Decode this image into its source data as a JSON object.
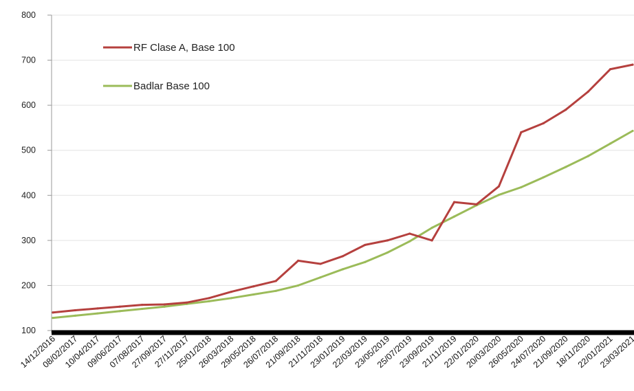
{
  "chart_data": {
    "type": "line",
    "title": "",
    "xlabel": "",
    "ylabel": "",
    "ylim": [
      100,
      800
    ],
    "yticks": [
      100,
      200,
      300,
      400,
      500,
      600,
      700,
      800
    ],
    "grid": true,
    "legend_position": "top-left",
    "x_tick_labels": [
      "14/12/2016",
      "08/02/2017",
      "10/04/2017",
      "09/06/2017",
      "07/08/2017",
      "27/09/2017",
      "27/11/2017",
      "25/01/2018",
      "26/03/2018",
      "29/05/2018",
      "26/07/2018",
      "21/09/2018",
      "21/11/2018",
      "23/01/2019",
      "22/03/2019",
      "23/05/2019",
      "25/07/2019",
      "23/09/2019",
      "21/11/2019",
      "22/01/2020",
      "20/03/2020",
      "26/05/2020",
      "24/07/2020",
      "21/09/2020",
      "18/11/2020",
      "22/01/2021",
      "23/03/2021"
    ],
    "x": [
      "14/12/2016",
      "08/02/2017",
      "10/04/2017",
      "09/06/2017",
      "07/08/2017",
      "27/09/2017",
      "27/11/2017",
      "25/01/2018",
      "26/03/2018",
      "29/05/2018",
      "26/07/2018",
      "21/09/2018",
      "21/11/2018",
      "23/01/2019",
      "22/03/2019",
      "23/05/2019",
      "25/07/2019",
      "23/09/2019",
      "21/11/2019",
      "22/01/2020",
      "20/03/2020",
      "26/05/2020",
      "24/07/2020",
      "21/09/2020",
      "18/11/2020",
      "22/01/2021",
      "23/03/2021"
    ],
    "series": [
      {
        "name": "RF Clase A, Base 100",
        "color": "#b5403e",
        "values": [
          140,
          145,
          149,
          153,
          157,
          158,
          162,
          172,
          186,
          198,
          210,
          255,
          248,
          265,
          290,
          300,
          315,
          300,
          385,
          380,
          420,
          540,
          560,
          590,
          630,
          680,
          690
        ]
      },
      {
        "name": "Badlar Base 100",
        "color": "#9bbb59",
        "values": [
          128,
          133,
          138,
          143,
          148,
          153,
          159,
          165,
          172,
          180,
          188,
          200,
          218,
          236,
          252,
          273,
          298,
          328,
          353,
          378,
          401,
          418,
          440,
          463,
          487,
          515,
          543
        ]
      }
    ]
  }
}
